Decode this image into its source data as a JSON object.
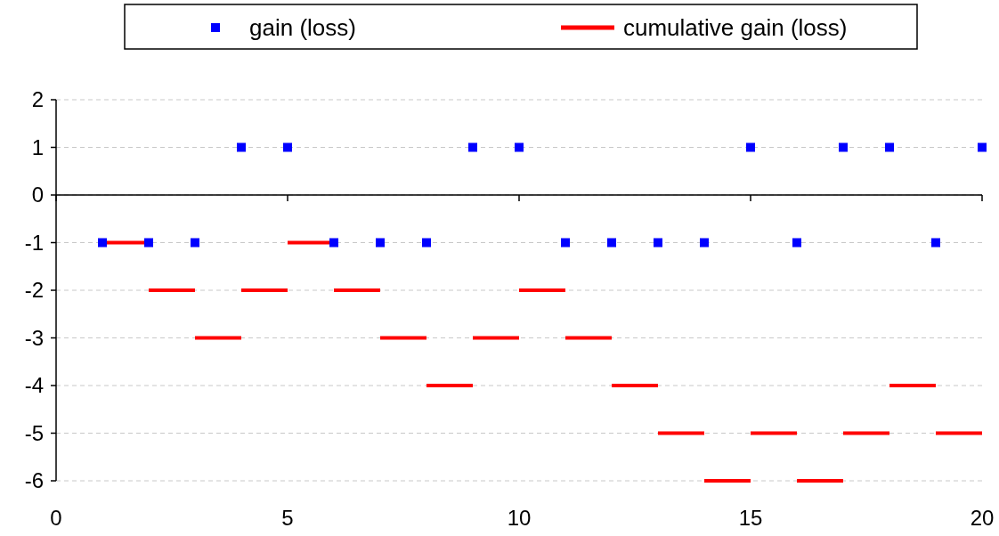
{
  "chart_data": {
    "type": "scatter",
    "legend": "top",
    "grid": "y",
    "xlim": [
      0,
      20
    ],
    "xticks": [
      0,
      5,
      10,
      15,
      20
    ],
    "ylim": [
      -6,
      2
    ],
    "yticks": [
      2,
      1,
      0,
      -1,
      -2,
      -3,
      -4,
      -5,
      -6
    ],
    "series": [
      {
        "name": "gain (loss)",
        "marker": "square",
        "color": "#0000ff",
        "x": [
          1,
          2,
          3,
          4,
          5,
          6,
          7,
          8,
          9,
          10,
          11,
          12,
          13,
          14,
          15,
          16,
          17,
          18,
          19,
          20
        ],
        "values": [
          -1,
          -1,
          -1,
          1,
          1,
          -1,
          -1,
          -1,
          1,
          1,
          -1,
          -1,
          -1,
          -1,
          1,
          -1,
          1,
          1,
          -1,
          1
        ]
      },
      {
        "name": "cumulative gain (loss)",
        "type": "step",
        "color": "#ff0000",
        "x": [
          1,
          2,
          3,
          4,
          5,
          6,
          7,
          8,
          9,
          10,
          11,
          12,
          13,
          14,
          15,
          16,
          17,
          18,
          19,
          20
        ],
        "values": [
          -1,
          -2,
          -3,
          -2,
          -1,
          -2,
          -3,
          -4,
          -3,
          -2,
          -3,
          -4,
          -5,
          -6,
          -5,
          -6,
          -5,
          -4,
          -5,
          -5
        ]
      }
    ]
  }
}
